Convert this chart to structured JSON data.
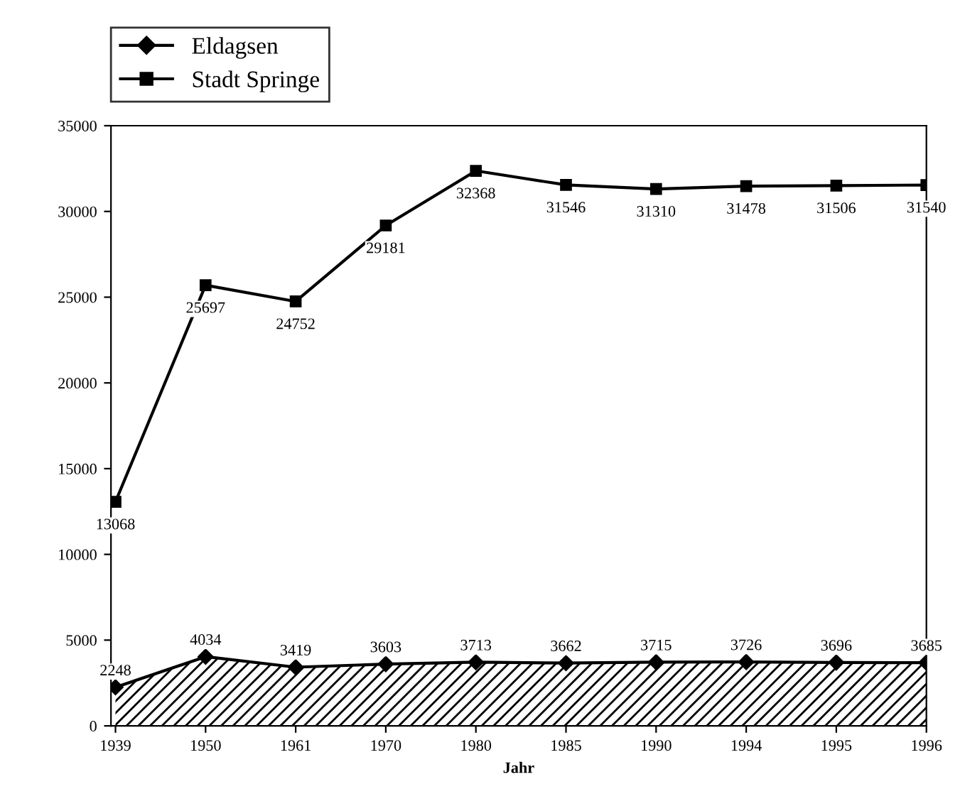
{
  "chart_data": {
    "type": "line",
    "xlabel": "Jahr",
    "categories": [
      "1939",
      "1950",
      "1961",
      "1970",
      "1980",
      "1985",
      "1990",
      "1994",
      "1995",
      "1996"
    ],
    "series": [
      {
        "name": "Eldagsen",
        "type": "area",
        "color": "#000000",
        "marker": "diamond",
        "values": [
          2248,
          4034,
          3419,
          3603,
          3713,
          3662,
          3715,
          3726,
          3696,
          3685
        ]
      },
      {
        "name": "Stadt Springe",
        "color": "#000000",
        "marker": "square",
        "values": [
          13068,
          25697,
          24752,
          29181,
          32368,
          31546,
          31310,
          31478,
          31506,
          31540
        ]
      }
    ],
    "ylim": [
      0,
      35000
    ],
    "yticks": [
      0,
      5000,
      10000,
      15000,
      20000,
      25000,
      30000,
      35000
    ],
    "data_labels": true,
    "legend": "top left",
    "grid": false,
    "line_style": "solid"
  }
}
